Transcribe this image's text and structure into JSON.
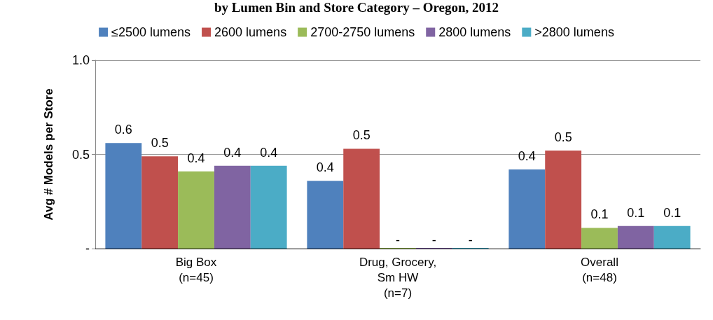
{
  "chart_data": {
    "type": "bar",
    "title": "by Lumen Bin and Store Category – Oregon, 2012",
    "ylabel": "Avg # Models per Store",
    "categories": [
      "Big Box\n(n=45)",
      "Drug, Grocery,\nSm HW\n(n=7)",
      "Overall\n(n=48)"
    ],
    "series": [
      {
        "name": "≤2500 lumens",
        "color": "#4f81bd",
        "values": [
          0.56,
          0.36,
          0.42
        ],
        "value_labels": [
          "0.6",
          "0.4",
          "0.4"
        ]
      },
      {
        "name": "2600 lumens",
        "color": "#c0504d",
        "values": [
          0.49,
          0.53,
          0.52
        ],
        "value_labels": [
          "0.5",
          "0.5",
          "0.5"
        ]
      },
      {
        "name": "2700-2750 lumens",
        "color": "#9bbb59",
        "values": [
          0.41,
          0,
          0.11
        ],
        "value_labels": [
          "0.4",
          "-",
          "0.1"
        ]
      },
      {
        "name": "2800 lumens",
        "color": "#8064a2",
        "values": [
          0.44,
          0,
          0.12
        ],
        "value_labels": [
          "0.4",
          "-",
          "0.1"
        ]
      },
      {
        "name": ">2800 lumens",
        "color": "#4bacc6",
        "values": [
          0.44,
          0,
          0.12
        ],
        "value_labels": [
          "0.4",
          "-",
          "0.1"
        ]
      }
    ],
    "ylim": [
      0,
      1
    ],
    "yticks": [
      {
        "value": 0,
        "label": "-"
      },
      {
        "value": 0.5,
        "label": "0.5"
      },
      {
        "value": 1,
        "label": "1.0"
      }
    ],
    "grid": "y",
    "legend": "top"
  }
}
